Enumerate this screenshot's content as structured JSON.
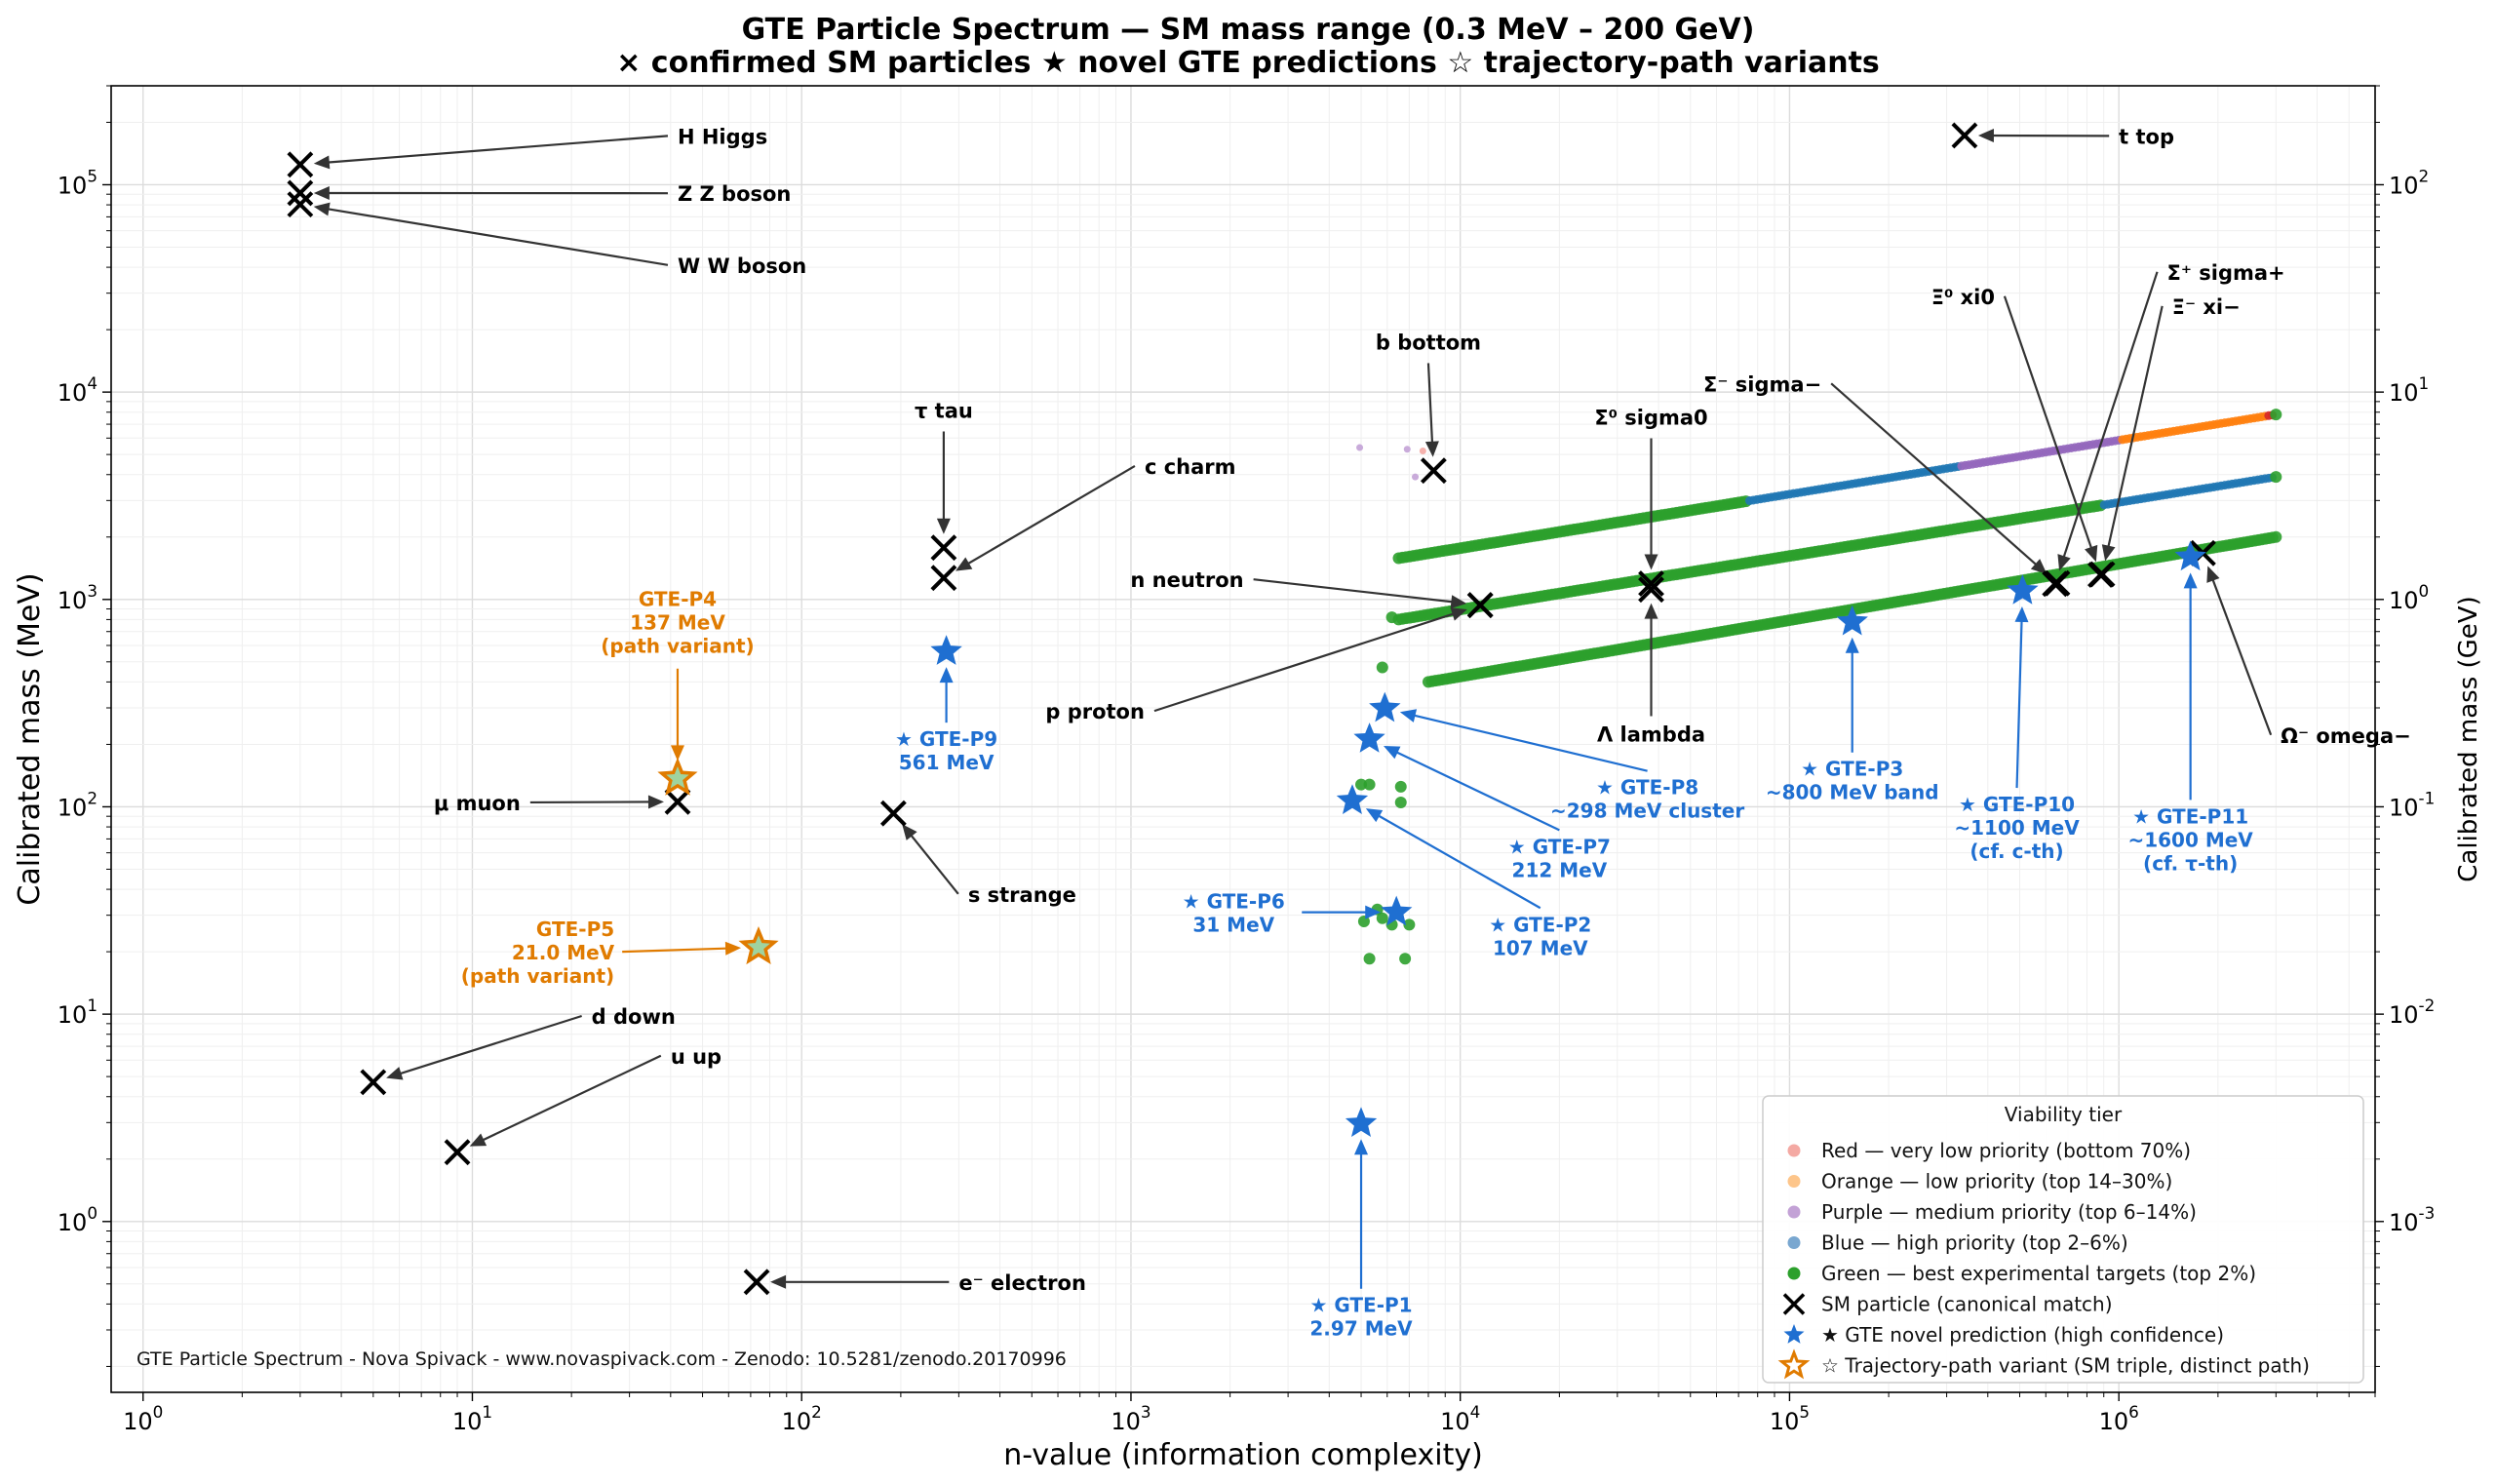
{
  "chart_data": {
    "type": "scatter",
    "title": "GTE Particle Spectrum — SM mass range (0.3 MeV – 200 GeV)",
    "subtitle": "× confirmed SM particles   ★ novel GTE predictions   ☆ trajectory-path variants",
    "xlabel": "n-value  (information complexity)",
    "ylabel": "Calibrated mass  (MeV)",
    "ylabel_right": "Calibrated mass  (GeV)",
    "xscale": "log",
    "yscale": "log",
    "xlim": [
      0.8,
      6000000
    ],
    "ylim": [
      0.15,
      300000
    ],
    "grid": true,
    "x_tick_labels": [
      "10^0",
      "10^1",
      "10^2",
      "10^3",
      "10^4",
      "10^5",
      "10^6"
    ],
    "y_tick_labels": [
      "10^0",
      "10^1",
      "10^2",
      "10^3",
      "10^4",
      "10^5"
    ],
    "y_right_tick_labels": [
      "10^-3",
      "10^-2",
      "10^-1",
      "10^0",
      "10^1",
      "10^2"
    ],
    "legend": {
      "title": "Viability tier",
      "position": "lower right",
      "entries": [
        {
          "label": "Red — very low priority (bottom 70%)",
          "marker": "dot",
          "color": "#f4a9a3"
        },
        {
          "label": "Orange — low priority (top 14–30%)",
          "marker": "dot",
          "color": "#fdc58a"
        },
        {
          "label": "Purple — medium priority (top 6–14%)",
          "marker": "dot",
          "color": "#c3a2d6"
        },
        {
          "label": "Blue — high priority (top 2–6%)",
          "marker": "dot",
          "color": "#79a7d0"
        },
        {
          "label": "Green — best experimental targets (top 2%)",
          "marker": "dot",
          "color": "#2ca02c"
        },
        {
          "label": "SM particle (canonical match)",
          "marker": "x",
          "color": "#000000"
        },
        {
          "label": "★ GTE novel prediction (high confidence)",
          "marker": "star",
          "color": "#1f6fd1"
        },
        {
          "label": "☆ Trajectory-path variant (SM triple, distinct path)",
          "marker": "hollow-star",
          "color": "#e07b00"
        }
      ]
    },
    "watermark": "GTE Particle Spectrum - Nova Spivack - www.novaspivack.com - Zenodo: 10.5281/zenodo.20170996",
    "tier_bands": [
      {
        "name": "upper band",
        "x_range": [
          6500,
          3000000
        ],
        "y_range": [
          1580,
          7800
        ],
        "segments": [
          {
            "color": "#2ca02c",
            "x_from": 6500,
            "x_to": 75000
          },
          {
            "color": "#1f77b4",
            "x_from": 75000,
            "x_to": 330000
          },
          {
            "color": "#9467bd",
            "x_from": 330000,
            "x_to": 1000000
          },
          {
            "color": "#ff7f0e",
            "x_from": 1000000,
            "x_to": 2800000
          },
          {
            "color": "#d62728",
            "x_from": 2800000,
            "x_to": 3000000
          }
        ]
      },
      {
        "name": "middle band",
        "x_range": [
          6500,
          3000000
        ],
        "y_range": [
          800,
          3900
        ],
        "segments": [
          {
            "color": "#2ca02c",
            "x_from": 6500,
            "x_to": 900000
          },
          {
            "color": "#1f77b4",
            "x_from": 900000,
            "x_to": 3000000
          }
        ]
      },
      {
        "name": "lower band",
        "x_range": [
          8000,
          3000000
        ],
        "y_range": [
          400,
          2000
        ],
        "segments": [
          {
            "color": "#2ca02c",
            "x_from": 8000,
            "x_to": 3000000
          }
        ]
      }
    ],
    "scatter_points": [
      {
        "x": 6200,
        "y": 820,
        "color": "#2ca02c"
      },
      {
        "x": 5800,
        "y": 470,
        "color": "#2ca02c"
      },
      {
        "x": 5000,
        "y": 128,
        "color": "#2ca02c"
      },
      {
        "x": 5300,
        "y": 128,
        "color": "#2ca02c"
      },
      {
        "x": 6600,
        "y": 125,
        "color": "#2ca02c"
      },
      {
        "x": 6600,
        "y": 105,
        "color": "#2ca02c"
      },
      {
        "x": 5600,
        "y": 32,
        "color": "#2ca02c"
      },
      {
        "x": 5800,
        "y": 29,
        "color": "#2ca02c"
      },
      {
        "x": 5100,
        "y": 28,
        "color": "#2ca02c"
      },
      {
        "x": 7000,
        "y": 27,
        "color": "#2ca02c"
      },
      {
        "x": 6200,
        "y": 27,
        "color": "#2ca02c"
      },
      {
        "x": 5300,
        "y": 18.5,
        "color": "#2ca02c"
      },
      {
        "x": 6800,
        "y": 18.5,
        "color": "#2ca02c"
      },
      {
        "x": 4950,
        "y": 5400,
        "color": "#c3a2d6"
      },
      {
        "x": 6900,
        "y": 5300,
        "color": "#c3a2d6"
      },
      {
        "x": 7300,
        "y": 3900,
        "color": "#c3a2d6"
      },
      {
        "x": 7700,
        "y": 5200,
        "color": "#f4a9a3"
      }
    ],
    "sm_particles": [
      {
        "label": "H  Higgs",
        "x": 3,
        "y": 125100,
        "label_x": 42,
        "label_y": 172000,
        "arrow": true
      },
      {
        "label": "Z  Z boson",
        "x": 3,
        "y": 91200,
        "label_x": 42,
        "label_y": 91000,
        "arrow": true
      },
      {
        "label": "W  W boson",
        "x": 3,
        "y": 80400,
        "label_x": 42,
        "label_y": 41000,
        "arrow": true
      },
      {
        "label": "t  top",
        "x": 340000,
        "y": 172800,
        "label_x": 1000000,
        "label_y": 172000,
        "arrow": true
      },
      {
        "label": "b  bottom",
        "x": 8300,
        "y": 4180,
        "label_x": 8000,
        "label_y": 17500,
        "arrow": true
      },
      {
        "label": "τ  tau",
        "x": 270,
        "y": 1777,
        "label_x": 270,
        "label_y": 8200,
        "arrow": true
      },
      {
        "label": "c  charm",
        "x": 270,
        "y": 1270,
        "label_x": 1100,
        "label_y": 4400,
        "arrow": true
      },
      {
        "label": "n  neutron",
        "x": 11500,
        "y": 939.6,
        "label_x": 2200,
        "label_y": 1250,
        "arrow": true
      },
      {
        "label": "p  proton",
        "x": 11500,
        "y": 938.3,
        "label_x": 1100,
        "label_y": 290,
        "arrow": true
      },
      {
        "label": "Σ⁰  sigma0",
        "x": 38000,
        "y": 1193,
        "label_x": 38000,
        "label_y": 7600,
        "arrow": true
      },
      {
        "label": "Λ  lambda",
        "x": 38000,
        "y": 1116,
        "label_x": 38000,
        "label_y": 225,
        "arrow": true
      },
      {
        "label": "Σ⁻  sigma−",
        "x": 650000,
        "y": 1197,
        "label_x": 125000,
        "label_y": 11000,
        "arrow": true
      },
      {
        "label": "Ξ⁰  xi0",
        "x": 880000,
        "y": 1315,
        "label_x": 420000,
        "label_y": 29000,
        "arrow": true
      },
      {
        "label": "Ξ⁻  xi−",
        "x": 890000,
        "y": 1322,
        "label_x": 1450000,
        "label_y": 26000,
        "arrow": true
      },
      {
        "label": "Σ⁺  sigma+",
        "x": 640000,
        "y": 1189,
        "label_x": 1400000,
        "label_y": 38000,
        "label_y_comment": "",
        "arrow": true
      },
      {
        "label": "Ω⁻  omega−",
        "x": 1800000,
        "y": 1672,
        "label_x": 3100000,
        "label_y": 222,
        "arrow": true
      },
      {
        "label": "μ  muon",
        "x": 42,
        "y": 105.7,
        "label_x": 14,
        "label_y": 105,
        "arrow": true
      },
      {
        "label": "s  strange",
        "x": 190,
        "y": 93,
        "label_x": 320,
        "label_y": 38,
        "arrow": true
      },
      {
        "label": "d  down",
        "x": 5,
        "y": 4.7,
        "label_x": 23,
        "label_y": 9.8,
        "arrow": true
      },
      {
        "label": "u  up",
        "x": 9,
        "y": 2.16,
        "label_x": 40,
        "label_y": 6.3,
        "arrow": true
      },
      {
        "label": "e⁻  electron",
        "x": 73,
        "y": 0.511,
        "label_x": 300,
        "label_y": 0.511,
        "arrow": true
      }
    ],
    "gte_predictions": [
      {
        "lines": [
          "★ GTE-P1",
          "2.97 MeV"
        ],
        "x": 5000,
        "y": 2.97,
        "label_x": 5000,
        "label_y": 0.35
      },
      {
        "lines": [
          "★ GTE-P2",
          "107 MeV"
        ],
        "x": 4700,
        "y": 107,
        "label_x": 17500,
        "label_y": 24
      },
      {
        "lines": [
          "★ GTE-P3",
          "~800 MeV band"
        ],
        "x": 155000,
        "y": 780,
        "label_x": 155000,
        "label_y": 135
      },
      {
        "lines": [
          "★ GTE-P6",
          "31 MeV"
        ],
        "x": 6400,
        "y": 31,
        "label_x": 2050,
        "label_y": 31
      },
      {
        "lines": [
          "★ GTE-P7",
          "212 MeV"
        ],
        "x": 5300,
        "y": 212,
        "label_x": 20000,
        "label_y": 57
      },
      {
        "lines": [
          "★ GTE-P8",
          "~298 MeV cluster"
        ],
        "x": 5900,
        "y": 298,
        "label_x": 37000,
        "label_y": 110
      },
      {
        "lines": [
          "★ GTE-P9",
          "561 MeV"
        ],
        "x": 275,
        "y": 561,
        "label_x": 275,
        "label_y": 188
      },
      {
        "lines": [
          "★ GTE-P10",
          "~1100 MeV",
          "(cf. c-th)"
        ],
        "x": 510000,
        "y": 1100,
        "label_x": 490000,
        "label_y": 80
      },
      {
        "lines": [
          "★ GTE-P11",
          "~1600 MeV",
          "(cf. τ-th)"
        ],
        "x": 1650000,
        "y": 1600,
        "label_x": 1650000,
        "label_y": 70
      }
    ],
    "path_variants": [
      {
        "lines": [
          "GTE-P4",
          "137 MeV",
          "(path variant)"
        ],
        "x": 42,
        "y": 137,
        "label_x": 42,
        "label_y": 780
      },
      {
        "lines": [
          "GTE-P5",
          "21.0 MeV",
          "(path variant)"
        ],
        "x": 74,
        "y": 21,
        "label_x": 27,
        "label_y": 20
      }
    ]
  }
}
